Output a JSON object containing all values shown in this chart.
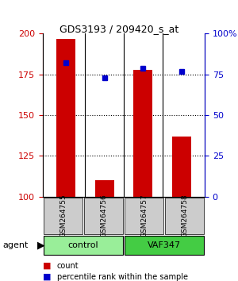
{
  "title": "GDS3193 / 209420_s_at",
  "samples": [
    "GSM264755",
    "GSM264756",
    "GSM264757",
    "GSM264758"
  ],
  "counts": [
    197,
    110,
    178,
    137
  ],
  "percentile_ranks": [
    82,
    73,
    79,
    77
  ],
  "ylim_left": [
    100,
    200
  ],
  "ylim_right": [
    0,
    100
  ],
  "yticks_left": [
    100,
    125,
    150,
    175,
    200
  ],
  "yticks_right": [
    0,
    25,
    50,
    75,
    100
  ],
  "ytick_labels_right": [
    "0",
    "25",
    "50",
    "75",
    "100%"
  ],
  "bar_color": "#cc0000",
  "dot_color": "#0000cc",
  "grid_color": "#000000",
  "groups": [
    {
      "label": "control",
      "indices": [
        0,
        1
      ],
      "color": "#99ee99"
    },
    {
      "label": "VAF347",
      "indices": [
        2,
        3
      ],
      "color": "#44cc44"
    }
  ],
  "agent_label": "agent",
  "legend_count_label": "count",
  "legend_pct_label": "percentile rank within the sample",
  "bg_sample_area": "#cccccc",
  "bar_width": 0.5
}
